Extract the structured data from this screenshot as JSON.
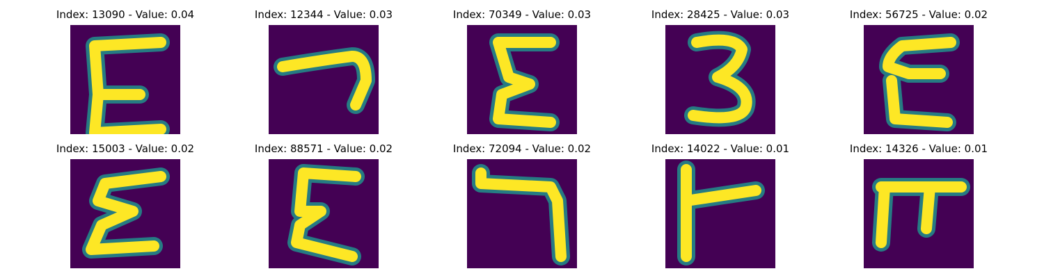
{
  "colors": {
    "background": "#440154",
    "edge": "#21918c",
    "stroke": "#fde725"
  },
  "panels": [
    {
      "title": "Index: 13090 - Value: 0.04",
      "glyph": "E"
    },
    {
      "title": "Index: 12344 - Value: 0.03",
      "glyph": "hook"
    },
    {
      "title": "Index: 70349 - Value: 0.03",
      "glyph": "E"
    },
    {
      "title": "Index: 28425 - Value: 0.03",
      "glyph": "3"
    },
    {
      "title": "Index: 56725 - Value: 0.02",
      "glyph": "E"
    },
    {
      "title": "Index: 15003 - Value: 0.02",
      "glyph": "E"
    },
    {
      "title": "Index: 88571 - Value: 0.02",
      "glyph": "E"
    },
    {
      "title": "Index: 72094 - Value: 0.02",
      "glyph": "hook"
    },
    {
      "title": "Index: 14022 - Value: 0.01",
      "glyph": "rotated-T"
    },
    {
      "title": "Index: 14326 - Value: 0.01",
      "glyph": "pi"
    }
  ]
}
